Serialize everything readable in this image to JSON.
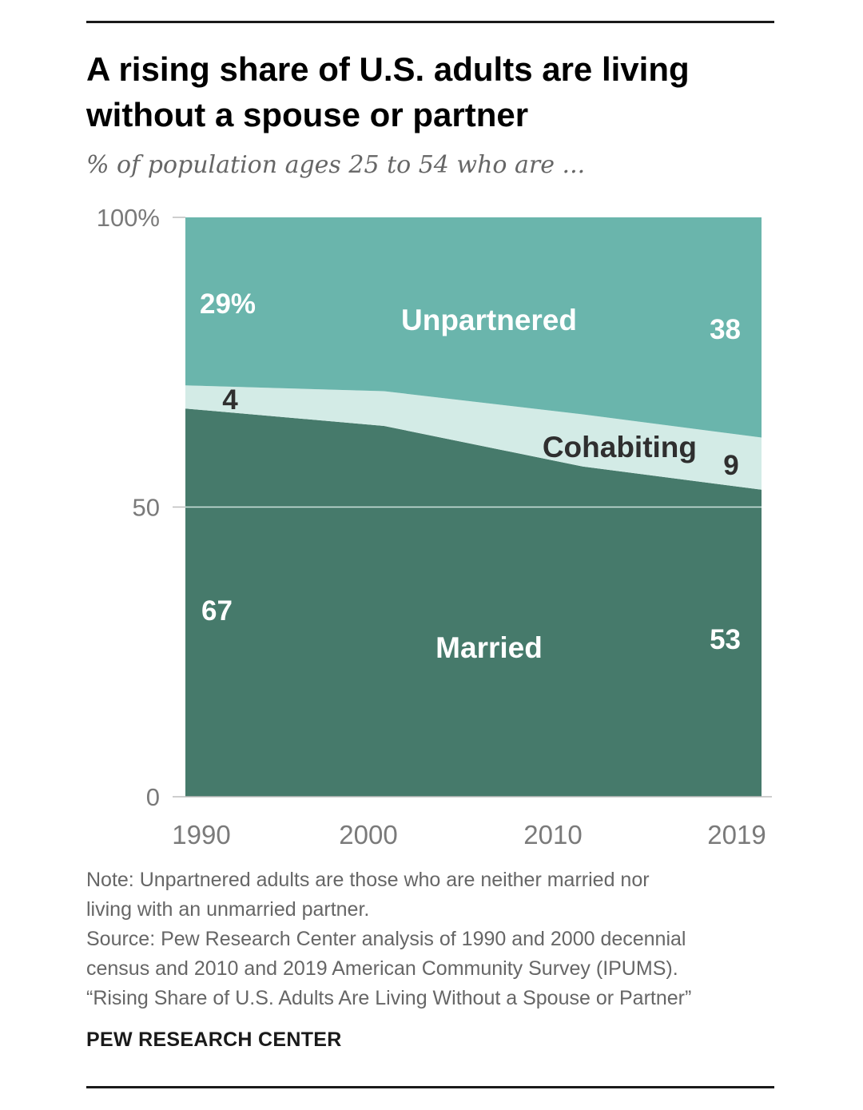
{
  "header": {
    "title_line1": "A rising share of U.S. adults are living",
    "title_line2": "without a spouse or partner",
    "subtitle": "% of population ages 25 to 54 who are ..."
  },
  "chart_data": {
    "type": "area",
    "stacked": true,
    "x": [
      1990,
      2000,
      2010,
      2019
    ],
    "xticks": [
      "1990",
      "2000",
      "2010",
      "2019"
    ],
    "yticks": [
      "0",
      "50",
      "100%"
    ],
    "ytick_values": [
      0,
      50,
      100
    ],
    "ylim": [
      0,
      100
    ],
    "series": [
      {
        "name": "Married",
        "values": [
          67,
          64,
          57,
          53
        ],
        "color": "#467a6b"
      },
      {
        "name": "Cohabiting",
        "values": [
          4,
          6,
          9,
          9
        ],
        "color": "#d3ebe6"
      },
      {
        "name": "Unpartnered",
        "values": [
          29,
          30,
          34,
          38
        ],
        "color": "#6ab5ac"
      }
    ],
    "labels": {
      "unpartnered_start": "29%",
      "unpartnered_end": "38",
      "cohabiting_start": "4",
      "cohabiting_end": "9",
      "married_start": "67",
      "married_end": "53"
    }
  },
  "footer": {
    "note_line1": "Note: Unpartnered adults are those who are neither married nor",
    "note_line2": "living with an unmarried partner.",
    "source_line1": "Source: Pew Research Center analysis of 1990 and 2000 decennial",
    "source_line2": "census and 2010 and 2019 American Community Survey (IPUMS).",
    "report_title": "“Rising Share of U.S. Adults Are Living Without a Spouse or Partner”",
    "brand": "PEW RESEARCH CENTER"
  }
}
